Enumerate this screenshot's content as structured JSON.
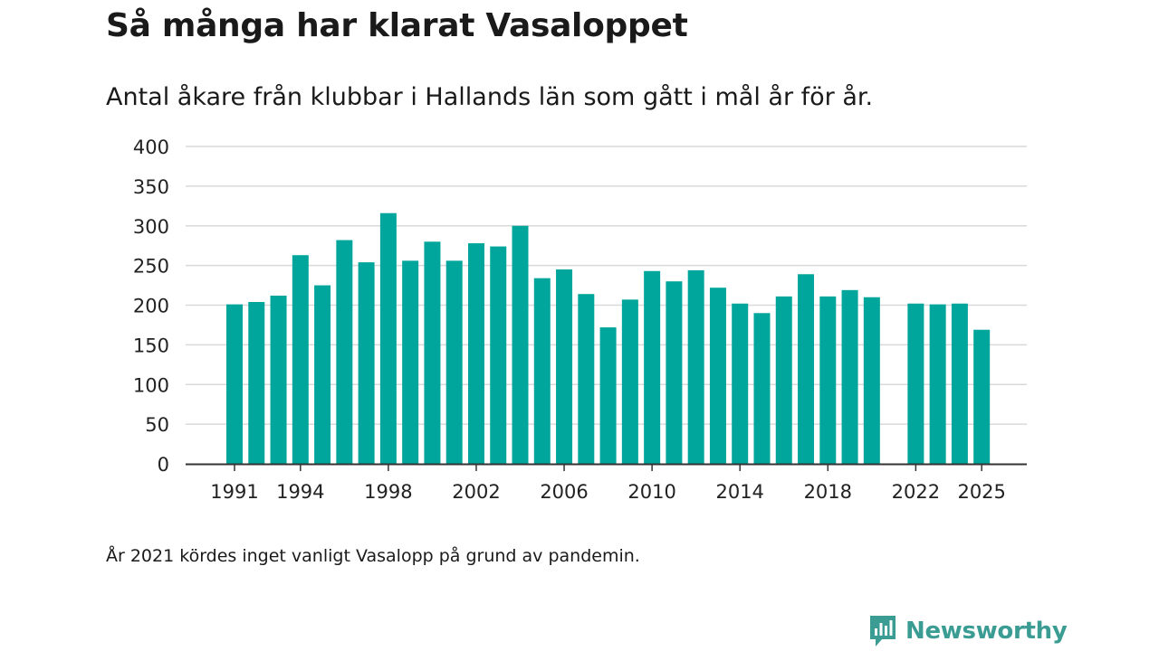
{
  "chart_data": {
    "type": "bar",
    "title": "Så många har klarat Vasaloppet",
    "subtitle": "Antal åkare från klubbar i Hallands län som gått i mål år för år.",
    "years": [
      1991,
      1992,
      1993,
      1994,
      1995,
      1996,
      1997,
      1998,
      1999,
      2000,
      2001,
      2002,
      2003,
      2004,
      2005,
      2006,
      2007,
      2008,
      2009,
      2010,
      2011,
      2012,
      2013,
      2014,
      2015,
      2016,
      2017,
      2018,
      2019,
      2020,
      2021,
      2022,
      2023,
      2024,
      2025
    ],
    "values": [
      201,
      204,
      212,
      263,
      225,
      282,
      254,
      316,
      256,
      280,
      256,
      278,
      274,
      300,
      234,
      245,
      214,
      172,
      207,
      243,
      230,
      244,
      222,
      202,
      190,
      211,
      239,
      211,
      219,
      210,
      null,
      202,
      201,
      202,
      169
    ],
    "x_tick_labels": [
      "1991",
      "1994",
      "1998",
      "2002",
      "2006",
      "2010",
      "2014",
      "2018",
      "2022",
      "2025"
    ],
    "y_ticks": [
      0,
      50,
      100,
      150,
      200,
      250,
      300,
      350,
      400
    ],
    "ylim": [
      0,
      400
    ],
    "grid": true,
    "bar_color": "#00a69b",
    "xlabel": "",
    "ylabel": ""
  },
  "note": "År 2021 kördes inget vanligt Vasalopp på grund av pandemin.",
  "brand": {
    "name": "Newsworthy",
    "icon": "newsworthy-logo-icon",
    "color": "#3a9c93"
  }
}
